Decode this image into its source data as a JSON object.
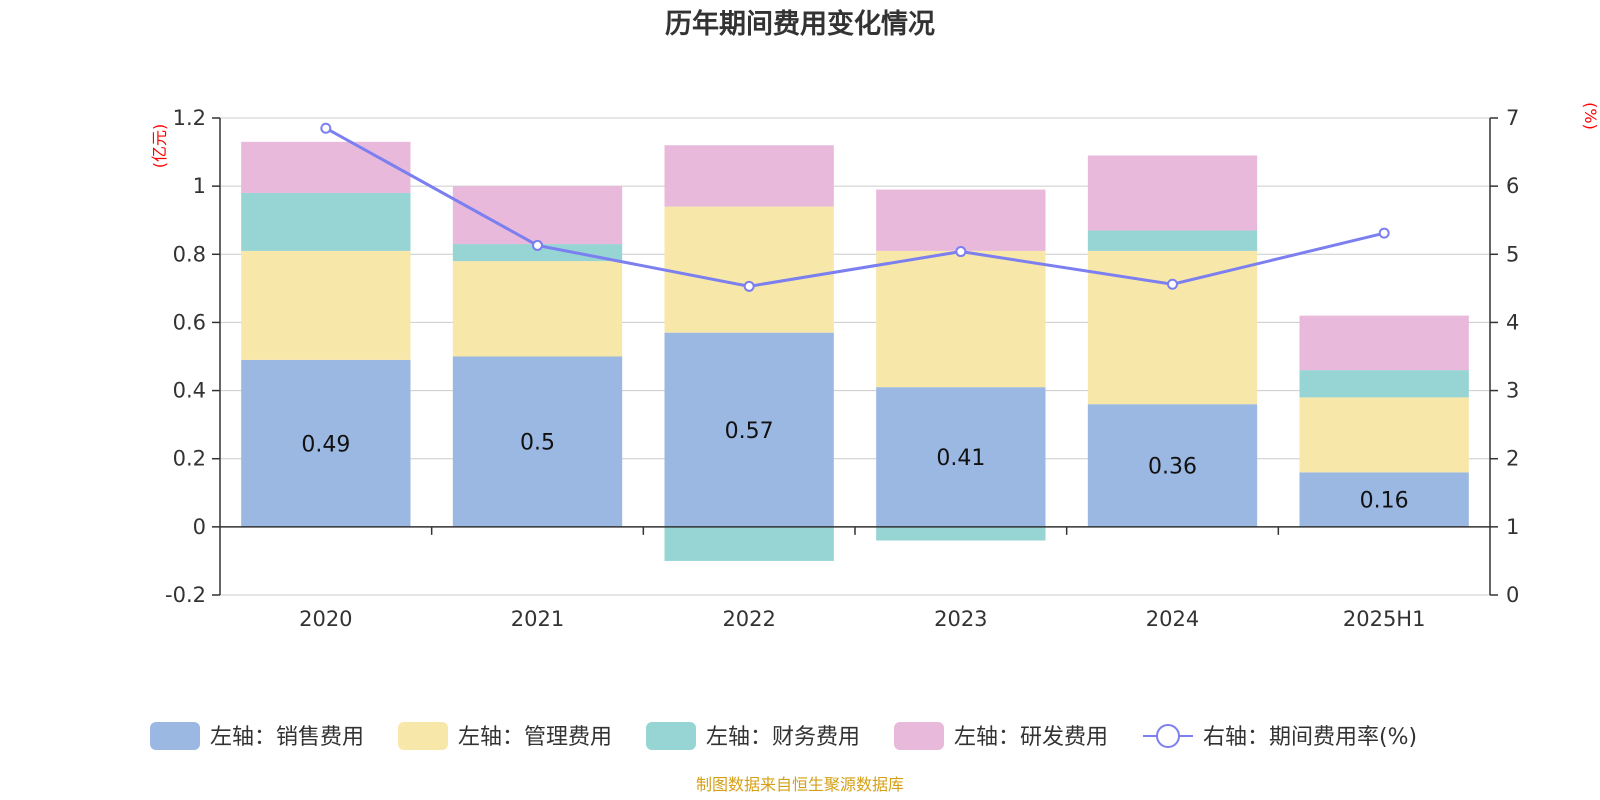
{
  "chart_data": {
    "type": "bar",
    "title": "历年期间费用变化情况",
    "categories": [
      "2020",
      "2021",
      "2022",
      "2023",
      "2024",
      "2025H1"
    ],
    "left_axis": {
      "unit": "(亿元)",
      "ylim": [
        -0.2,
        1.2
      ],
      "ticks": [
        "-0.2",
        "0",
        "0.2",
        "0.4",
        "0.6",
        "0.8",
        "1",
        "1.2"
      ]
    },
    "right_axis": {
      "unit": "(%)",
      "ylim": [
        0,
        7
      ],
      "ticks": [
        "0",
        "1",
        "2",
        "3",
        "4",
        "5",
        "6",
        "7"
      ]
    },
    "grid": true,
    "legend_position": "bottom",
    "series": [
      {
        "name": "左轴：销售费用",
        "axis": "left",
        "kind": "bar",
        "color": "#9bb8e2",
        "values": [
          0.49,
          0.5,
          0.57,
          0.41,
          0.36,
          0.16
        ],
        "data_labels": [
          "0.49",
          "0.5",
          "0.57",
          "0.41",
          "0.36",
          "0.16"
        ]
      },
      {
        "name": "左轴：管理费用",
        "axis": "left",
        "kind": "bar",
        "color": "#f7e7a8",
        "values": [
          0.32,
          0.28,
          0.37,
          0.4,
          0.45,
          0.22
        ]
      },
      {
        "name": "左轴：财务费用",
        "axis": "left",
        "kind": "bar",
        "color": "#97d4d4",
        "values": [
          0.17,
          0.05,
          -0.1,
          -0.04,
          0.06,
          0.08
        ]
      },
      {
        "name": "左轴：研发费用",
        "axis": "left",
        "kind": "bar",
        "color": "#e8b9da",
        "values": [
          0.15,
          0.17,
          0.18,
          0.18,
          0.22,
          0.16
        ]
      },
      {
        "name": "右轴：期间费用率(%)",
        "axis": "right",
        "kind": "line",
        "color": "#7b7ff0",
        "values": [
          6.85,
          5.13,
          4.53,
          5.04,
          4.56,
          5.31
        ]
      }
    ],
    "source": "制图数据来自恒生聚源数据库"
  }
}
